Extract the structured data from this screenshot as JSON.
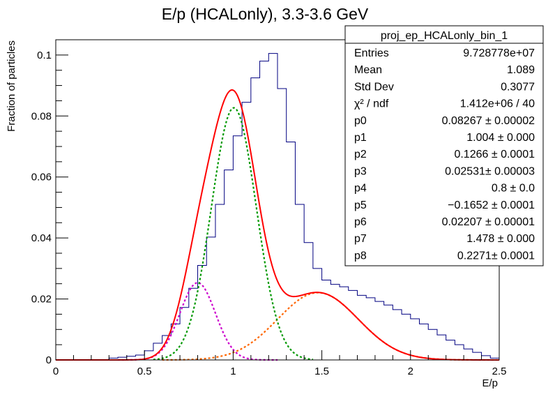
{
  "chart_data": {
    "type": "histogram",
    "title": "E/p (HCALonly), 3.3-3.6 GeV",
    "xlabel": "E/p",
    "ylabel": "Fraction of particles",
    "xlim": [
      0,
      2.5
    ],
    "ylim": [
      0,
      0.105
    ],
    "x_ticks": [
      0,
      0.5,
      1,
      1.5,
      2,
      2.5
    ],
    "x_tick_labels": [
      "0",
      "0.5",
      "1",
      "1.5",
      "2",
      "2.5"
    ],
    "y_ticks": [
      0,
      0.02,
      0.04,
      0.06,
      0.08,
      0.1
    ],
    "y_tick_labels": [
      "0",
      "0.02",
      "0.04",
      "0.06",
      "0.08",
      "0.1"
    ],
    "grid": false,
    "histogram": {
      "bin_width": 0.05,
      "bin_edges_start": 0,
      "values": [
        0,
        0,
        0,
        0,
        0,
        0,
        0.0006,
        0.0009,
        0.0012,
        0.0016,
        0.003,
        0.0055,
        0.008,
        0.0118,
        0.0172,
        0.0235,
        0.031,
        0.0403,
        0.051,
        0.0623,
        0.0735,
        0.0845,
        0.0925,
        0.098,
        0.1005,
        0.089,
        0.0715,
        0.051,
        0.0385,
        0.03,
        0.0262,
        0.0248,
        0.024,
        0.0228,
        0.0212,
        0.0204,
        0.0192,
        0.018,
        0.0165,
        0.015,
        0.0135,
        0.0118,
        0.01,
        0.0082,
        0.0065,
        0.005,
        0.0036,
        0.0025,
        0.0014,
        0.0006
      ],
      "color": "#000080"
    },
    "fit_params": [
      0.08267,
      1.004,
      0.1266,
      0.02531,
      0.8,
      -0.1652,
      0.02207,
      1.478,
      0.2271
    ],
    "curves": [
      {
        "id": "total",
        "color": "#ff0000",
        "style": "solid"
      },
      {
        "id": "gaus1",
        "color": "#009900",
        "style": "dotted"
      },
      {
        "id": "gaus2",
        "color": "#cc00cc",
        "style": "dotted"
      },
      {
        "id": "gaus3",
        "color": "#ff6600",
        "style": "dotted"
      }
    ],
    "stats_box": {
      "title": "proj_ep_HCALonly_bin_1",
      "rows": [
        {
          "label": "Entries",
          "value": "9.728778e+07"
        },
        {
          "label": "Mean",
          "value": "1.089"
        },
        {
          "label": "Std Dev",
          "value": "0.3077"
        },
        {
          "label": "χ² / ndf",
          "value": "1.412e+06 / 40"
        },
        {
          "label": "p0",
          "value": "0.08267 ± 0.00002"
        },
        {
          "label": "p1",
          "value": "1.004 ± 0.000"
        },
        {
          "label": "p2",
          "value": "0.1266 ± 0.0001"
        },
        {
          "label": "p3",
          "value": "0.02531± 0.00003"
        },
        {
          "label": "p4",
          "value": "0.8 ± 0.0"
        },
        {
          "label": "p5",
          "value": "−0.1652 ± 0.0001"
        },
        {
          "label": "p6",
          "value": "0.02207 ± 0.00001"
        },
        {
          "label": "p7",
          "value": "1.478 ± 0.000"
        },
        {
          "label": "p8",
          "value": "0.2271± 0.0001"
        }
      ]
    }
  }
}
